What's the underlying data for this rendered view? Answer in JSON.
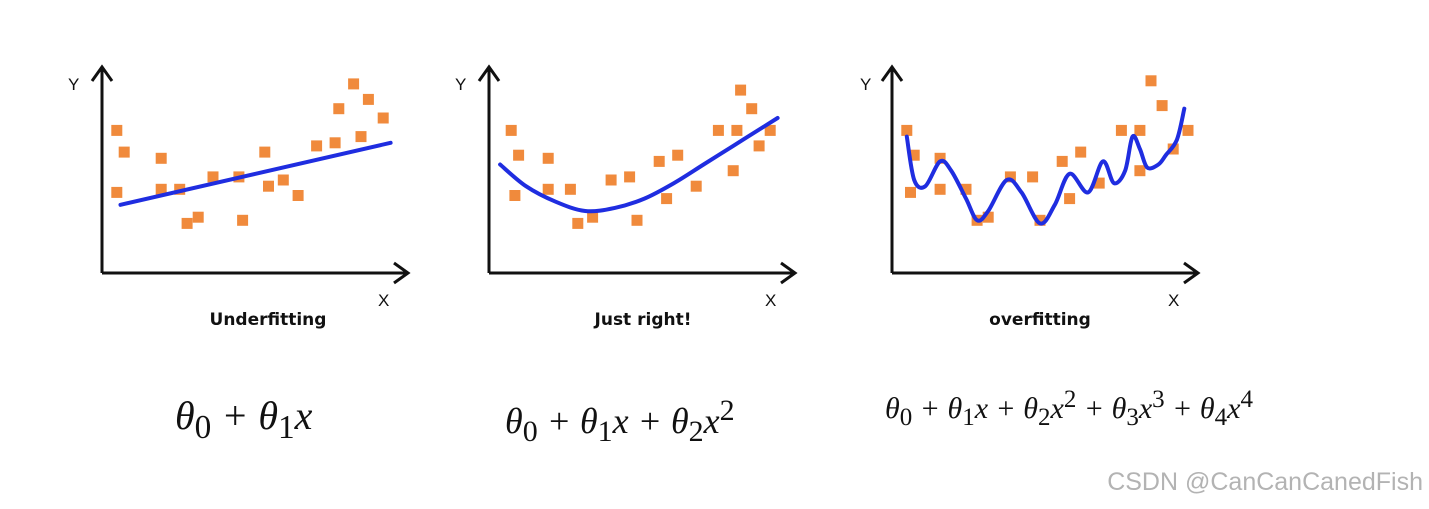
{
  "chart_data": [
    {
      "type": "scatter",
      "title": "Underfitting",
      "xlabel": "X",
      "ylabel": "Y",
      "formula": "θ0 + θ1x",
      "fit": "linear",
      "colors": {
        "points": "#f08a3c",
        "curve": "#1f2de0"
      },
      "points": [
        [
          4,
          46
        ],
        [
          6,
          39
        ],
        [
          4,
          26
        ],
        [
          16,
          37
        ],
        [
          16,
          27
        ],
        [
          21,
          27
        ],
        [
          23,
          16
        ],
        [
          26,
          18
        ],
        [
          30,
          31
        ],
        [
          37,
          31
        ],
        [
          38,
          17
        ],
        [
          44,
          39
        ],
        [
          45,
          28
        ],
        [
          49,
          30
        ],
        [
          53,
          25
        ],
        [
          58,
          41
        ],
        [
          63,
          42
        ],
        [
          64,
          53
        ],
        [
          68,
          61
        ],
        [
          70,
          44
        ],
        [
          72,
          56
        ],
        [
          76,
          50
        ]
      ],
      "curve": [
        [
          5,
          22
        ],
        [
          78,
          42
        ]
      ]
    },
    {
      "type": "scatter",
      "title": "Just right!",
      "xlabel": "X",
      "ylabel": "Y",
      "formula": "θ0 + θ1x + θ2x2",
      "fit": "quadratic",
      "colors": {
        "points": "#f08a3c",
        "curve": "#1f2de0"
      },
      "points": [
        [
          6,
          46
        ],
        [
          8,
          38
        ],
        [
          7,
          25
        ],
        [
          16,
          37
        ],
        [
          16,
          27
        ],
        [
          22,
          27
        ],
        [
          24,
          16
        ],
        [
          28,
          18
        ],
        [
          33,
          30
        ],
        [
          38,
          31
        ],
        [
          40,
          17
        ],
        [
          46,
          36
        ],
        [
          48,
          24
        ],
        [
          51,
          38
        ],
        [
          56,
          28
        ],
        [
          62,
          46
        ],
        [
          67,
          46
        ],
        [
          66,
          33
        ],
        [
          68,
          59
        ],
        [
          71,
          53
        ],
        [
          73,
          41
        ],
        [
          76,
          46
        ]
      ],
      "curve": [
        [
          3,
          35
        ],
        [
          10,
          28
        ],
        [
          18,
          23
        ],
        [
          26,
          20
        ],
        [
          34,
          21
        ],
        [
          42,
          24
        ],
        [
          50,
          29
        ],
        [
          58,
          35
        ],
        [
          66,
          41
        ],
        [
          74,
          47
        ],
        [
          78,
          50
        ]
      ]
    },
    {
      "type": "scatter",
      "title": "overfitting",
      "xlabel": "X",
      "ylabel": "Y",
      "formula": "θ0 + θ1x + θ2x2 + θ3x3 + θ4x4",
      "fit": "quartic",
      "colors": {
        "points": "#f08a3c",
        "curve": "#1f2de0"
      },
      "points": [
        [
          4,
          46
        ],
        [
          6,
          38
        ],
        [
          5,
          26
        ],
        [
          13,
          37
        ],
        [
          13,
          27
        ],
        [
          20,
          27
        ],
        [
          23,
          17
        ],
        [
          26,
          18
        ],
        [
          32,
          31
        ],
        [
          38,
          31
        ],
        [
          40,
          17
        ],
        [
          46,
          36
        ],
        [
          48,
          24
        ],
        [
          51,
          39
        ],
        [
          56,
          29
        ],
        [
          62,
          46
        ],
        [
          67,
          46
        ],
        [
          67,
          33
        ],
        [
          70,
          62
        ],
        [
          73,
          54
        ],
        [
          76,
          40
        ],
        [
          80,
          46
        ]
      ],
      "curve": [
        [
          4,
          44
        ],
        [
          6,
          30
        ],
        [
          9,
          28
        ],
        [
          13,
          36
        ],
        [
          16,
          33
        ],
        [
          20,
          24
        ],
        [
          23,
          17
        ],
        [
          26,
          20
        ],
        [
          31,
          30
        ],
        [
          35,
          26
        ],
        [
          40,
          16
        ],
        [
          44,
          22
        ],
        [
          48,
          32
        ],
        [
          53,
          26
        ],
        [
          57,
          36
        ],
        [
          60,
          29
        ],
        [
          63,
          33
        ],
        [
          65,
          44
        ],
        [
          67,
          40
        ],
        [
          69,
          34
        ],
        [
          72,
          35
        ],
        [
          74,
          38
        ],
        [
          77,
          43
        ],
        [
          79,
          53
        ]
      ]
    }
  ],
  "watermark": "CSDN @CanCanCanedFish"
}
